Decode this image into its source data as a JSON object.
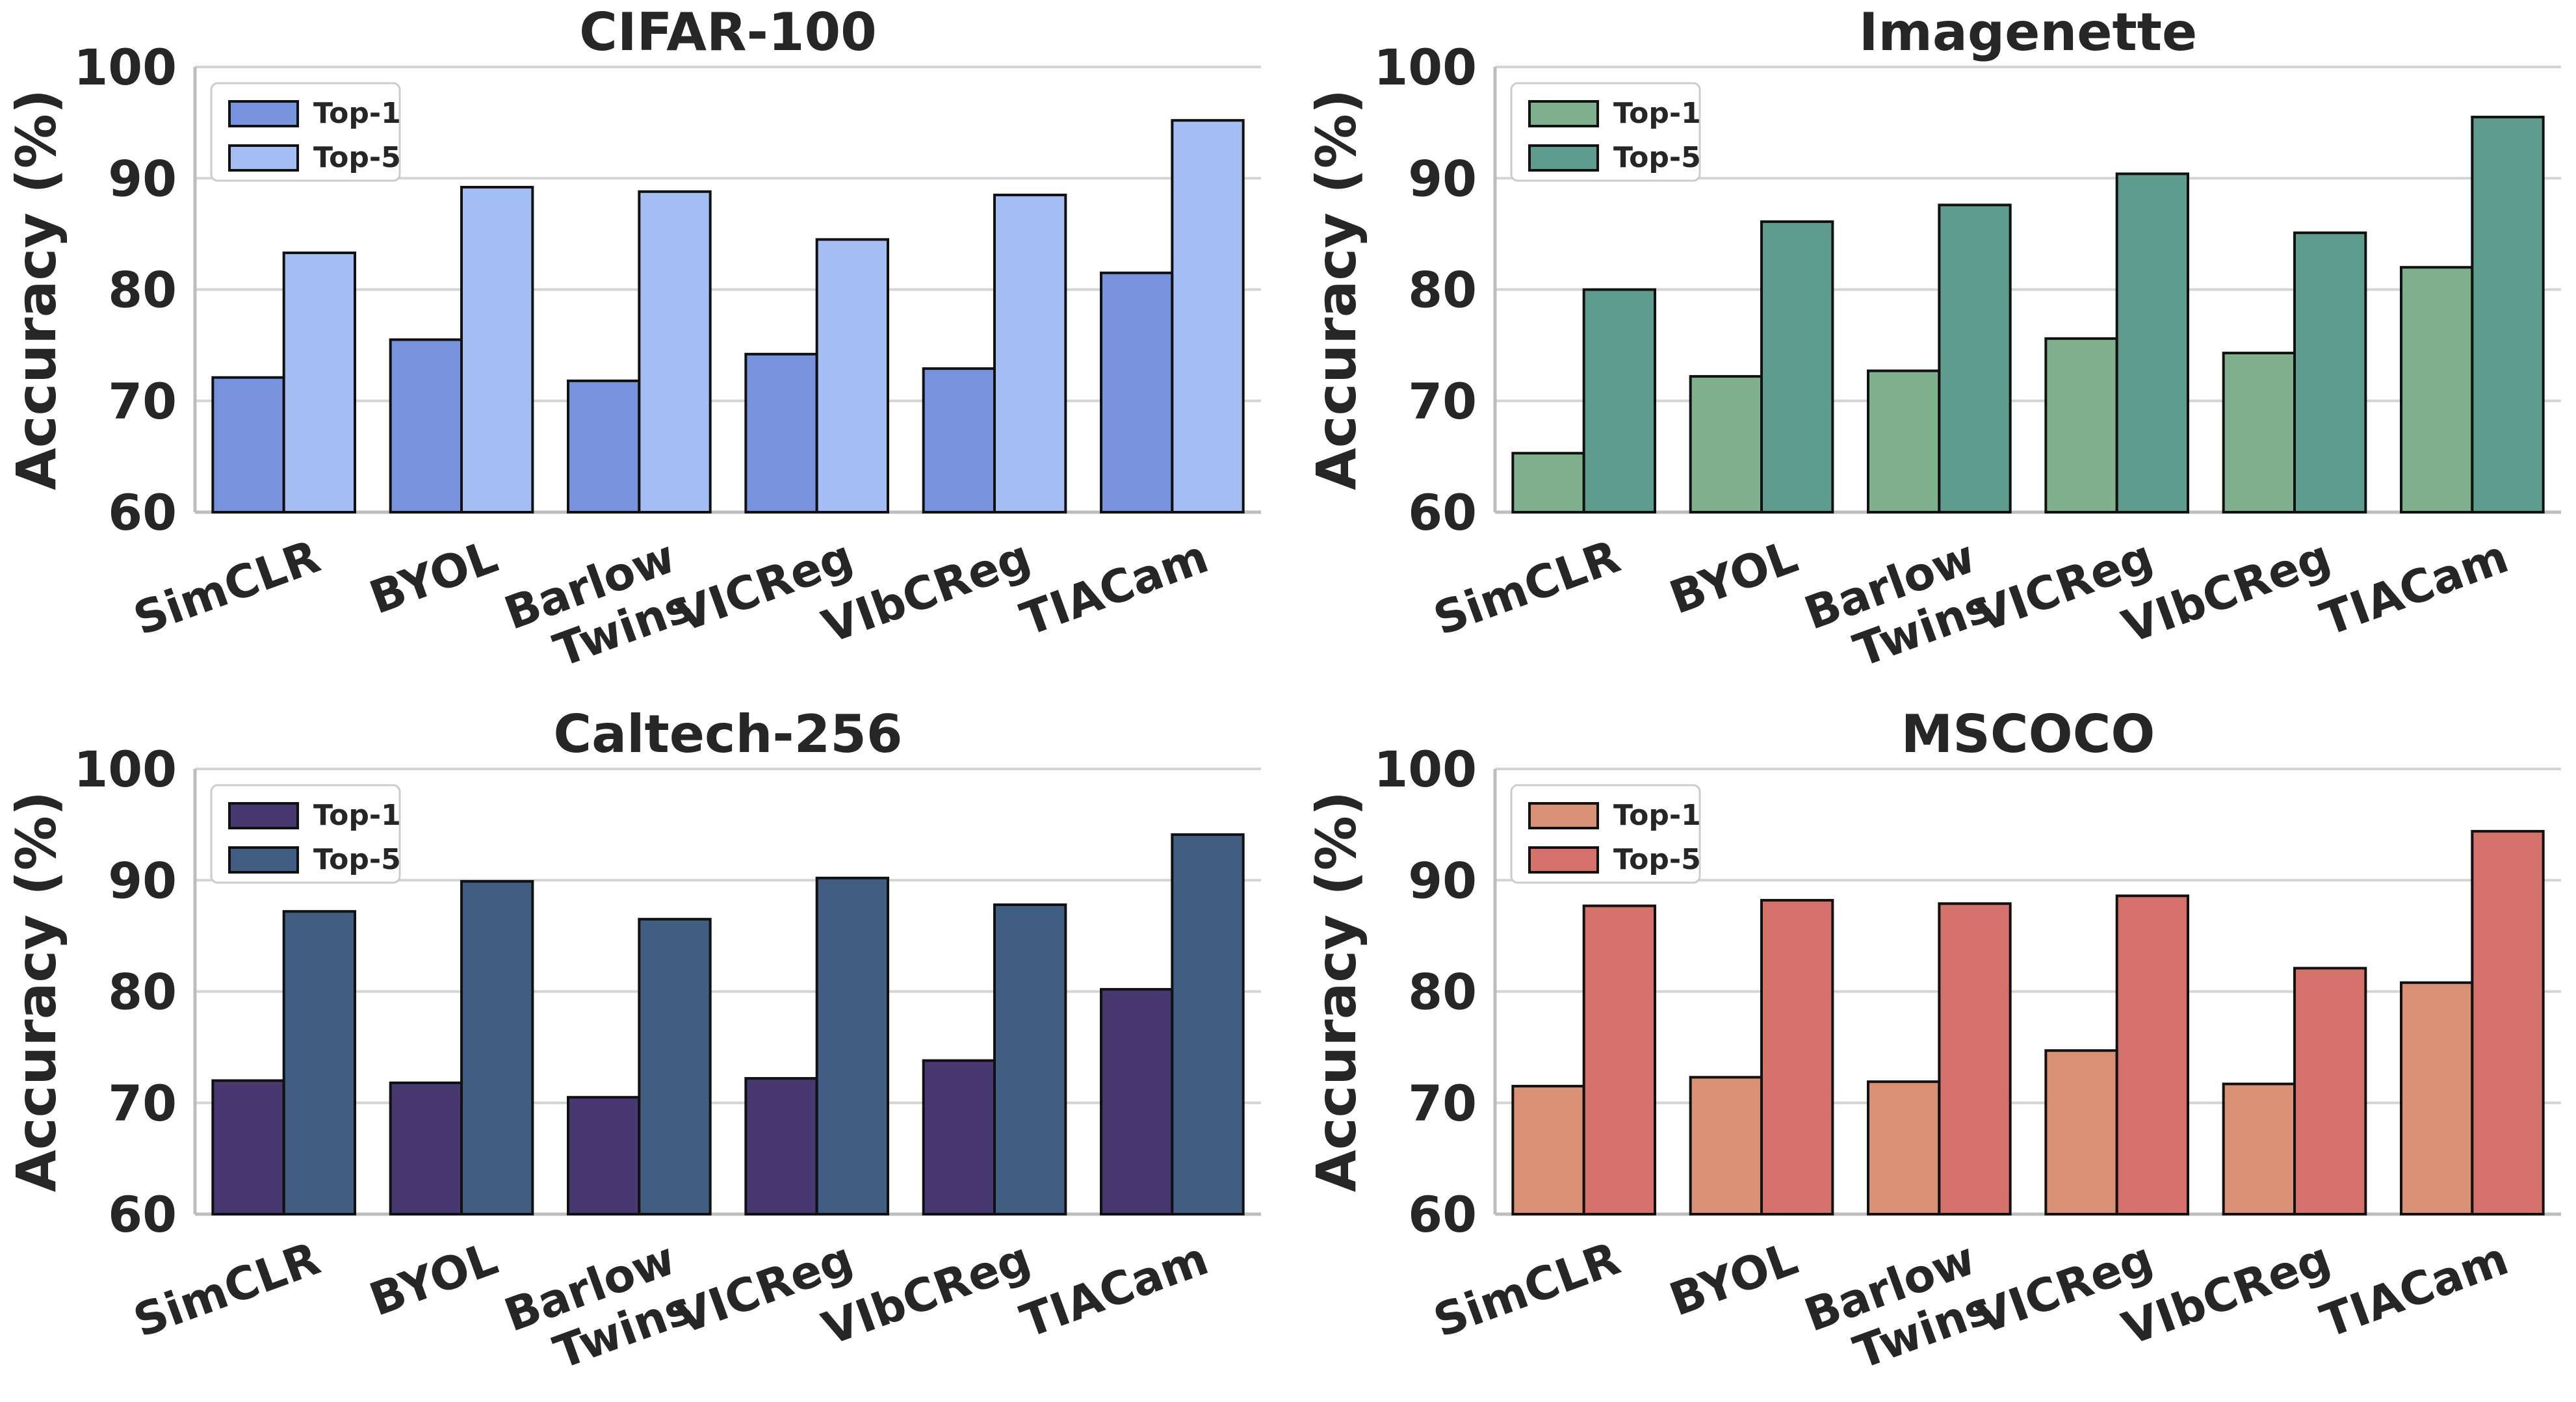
{
  "figure": {
    "ylabel": "Accuracy (%)",
    "ylim": [
      60,
      100
    ],
    "yticks": [
      60,
      70,
      80,
      90,
      100
    ],
    "legend_labels": [
      "Top-1",
      "Top-5"
    ],
    "categories": [
      "SimCLR",
      "BYOL",
      "Barlow Twins",
      "VICReg",
      "VIbCReg",
      "TIACam"
    ]
  },
  "chart_data": [
    {
      "type": "bar",
      "title": "CIFAR-100",
      "ylabel": "Accuracy (%)",
      "ylim": [
        60,
        100
      ],
      "legend_position": "top-left",
      "categories": [
        "SimCLR",
        "BYOL",
        "Barlow Twins",
        "VICReg",
        "VIbCReg",
        "TIACam"
      ],
      "series": [
        {
          "name": "Top-1",
          "color": "#7793dd",
          "values": [
            72.1,
            75.5,
            71.8,
            74.2,
            72.9,
            81.5
          ]
        },
        {
          "name": "Top-5",
          "color": "#a4bdf2",
          "values": [
            83.3,
            89.2,
            88.8,
            84.5,
            88.5,
            95.2
          ]
        }
      ]
    },
    {
      "type": "bar",
      "title": "Imagenette",
      "ylabel": "Accuracy (%)",
      "ylim": [
        60,
        100
      ],
      "legend_position": "top-left",
      "categories": [
        "SimCLR",
        "BYOL",
        "Barlow Twins",
        "VICReg",
        "VIbCReg",
        "TIACam"
      ],
      "series": [
        {
          "name": "Top-1",
          "color": "#81b08f",
          "values": [
            65.3,
            72.2,
            72.7,
            75.6,
            74.3,
            82.0
          ]
        },
        {
          "name": "Top-5",
          "color": "#5f9c8d",
          "values": [
            80.0,
            86.1,
            87.6,
            90.4,
            85.1,
            95.5
          ]
        }
      ]
    },
    {
      "type": "bar",
      "title": "Caltech-256",
      "ylabel": "Accuracy (%)",
      "ylim": [
        60,
        100
      ],
      "legend_position": "top-left",
      "categories": [
        "SimCLR",
        "BYOL",
        "Barlow Twins",
        "VICReg",
        "VIbCReg",
        "TIACam"
      ],
      "series": [
        {
          "name": "Top-1",
          "color": "#483872",
          "values": [
            72.0,
            71.8,
            70.5,
            72.2,
            73.8,
            80.2
          ]
        },
        {
          "name": "Top-5",
          "color": "#415d82",
          "values": [
            87.2,
            89.9,
            86.5,
            90.2,
            87.8,
            94.1
          ]
        }
      ]
    },
    {
      "type": "bar",
      "title": "MSCOCO",
      "ylabel": "Accuracy (%)",
      "ylim": [
        60,
        100
      ],
      "legend_position": "top-left",
      "categories": [
        "SimCLR",
        "BYOL",
        "Barlow Twins",
        "VICReg",
        "VIbCReg",
        "TIACam"
      ],
      "series": [
        {
          "name": "Top-1",
          "color": "#d99176",
          "values": [
            71.5,
            72.3,
            71.9,
            74.7,
            71.7,
            80.8
          ]
        },
        {
          "name": "Top-5",
          "color": "#d3716a",
          "values": [
            87.7,
            88.2,
            87.9,
            88.6,
            82.1,
            94.4
          ]
        }
      ]
    }
  ]
}
